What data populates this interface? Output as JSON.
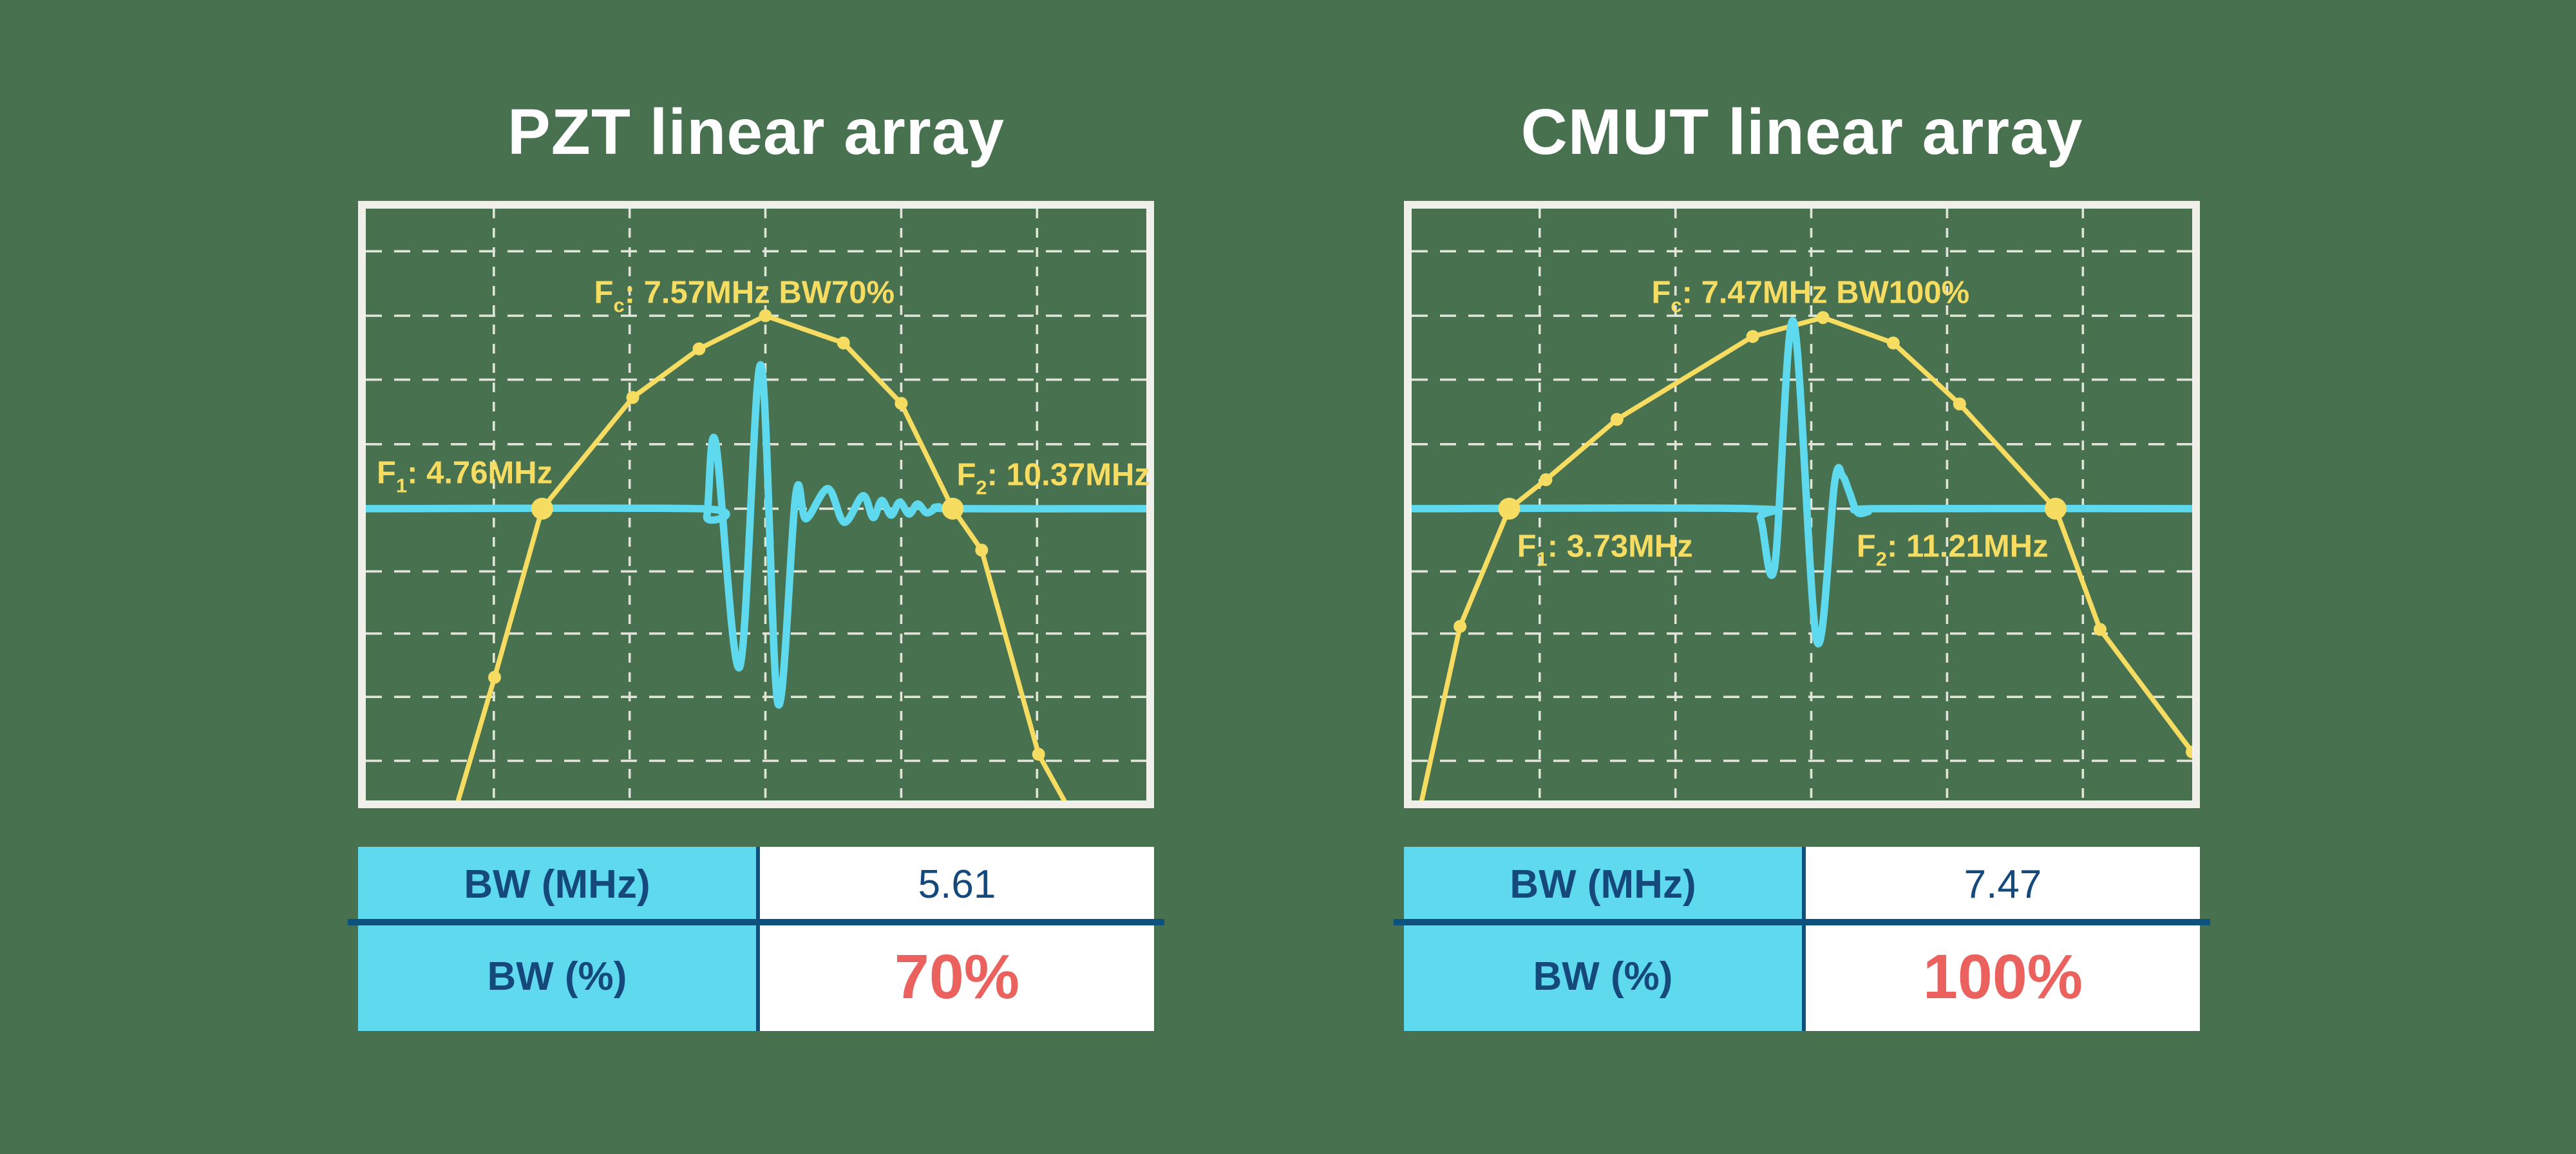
{
  "canvas": {
    "background_color": "#48714F"
  },
  "palette": {
    "spectrum_yellow": "#F7DC62",
    "pulse_cyan": "#5ED9EE",
    "frame_white": "#F0EFEA",
    "grid_white": "#EFEEE4",
    "table_header_cyan": "#5ED9EE",
    "table_value_bg": "#FFFFFF",
    "text_dark_blue": "#15497C",
    "row_separator_blue": "#0D527F",
    "value_red": "#EA615E",
    "title_white": "#FFFFFF"
  },
  "chart_data": [
    {
      "type": "line",
      "title": "PZT linear array",
      "center_frequency_mhz": 7.57,
      "f1_mhz": 4.76,
      "f2_mhz": 10.37,
      "bandwidth_mhz": 5.61,
      "bandwidth_pct": 70,
      "legend": "none",
      "axes": "unlabeled oscilloscope-style grid, -6dB crossing line shown in cyan",
      "annotations": {
        "fc": {
          "prefix": "F",
          "sub": "c",
          "rest": ": 7.57MHz BW70%",
          "x": 0.485,
          "y": 0.143,
          "anchor": "center"
        },
        "f1": {
          "prefix": "F",
          "sub": "1",
          "rest": ": 4.76MHz",
          "x": 0.014,
          "y": 0.447,
          "anchor": "left"
        },
        "f2": {
          "prefix": "F",
          "sub": "2",
          "rest": ": 10.37MHz",
          "x": 0.757,
          "y": 0.45,
          "anchor": "left"
        }
      },
      "baseline_y": 0.507,
      "grid": {
        "v": [
          0.164,
          0.338,
          0.512,
          0.686,
          0.86
        ],
        "h": [
          0.072,
          0.181,
          0.289,
          0.398,
          0.507,
          0.613,
          0.718,
          0.825,
          0.933
        ]
      },
      "spectrum": [
        [
          0.105,
          1.06
        ],
        [
          0.165,
          0.792
        ],
        [
          0.226,
          0.507
        ],
        [
          0.342,
          0.319
        ],
        [
          0.427,
          0.237
        ],
        [
          0.512,
          0.181
        ],
        [
          0.612,
          0.227
        ],
        [
          0.686,
          0.329
        ],
        [
          0.752,
          0.507
        ],
        [
          0.789,
          0.577
        ],
        [
          0.862,
          0.922
        ],
        [
          0.92,
          1.06
        ]
      ],
      "dots": [
        {
          "x": 0.165,
          "y": 0.792,
          "size": "small"
        },
        {
          "x": 0.226,
          "y": 0.507,
          "size": "big"
        },
        {
          "x": 0.342,
          "y": 0.319,
          "size": "small"
        },
        {
          "x": 0.427,
          "y": 0.237,
          "size": "small"
        },
        {
          "x": 0.512,
          "y": 0.181,
          "size": "small"
        },
        {
          "x": 0.612,
          "y": 0.227,
          "size": "small"
        },
        {
          "x": 0.686,
          "y": 0.329,
          "size": "small"
        },
        {
          "x": 0.752,
          "y": 0.507,
          "size": "big"
        },
        {
          "x": 0.789,
          "y": 0.577,
          "size": "small"
        },
        {
          "x": 0.862,
          "y": 0.922,
          "size": "small"
        }
      ],
      "pulse": [
        [
          0,
          0.507
        ],
        [
          0.428,
          0.507
        ],
        [
          0.437,
          0.52
        ],
        [
          0.448,
          0.394
        ],
        [
          0.479,
          0.775
        ],
        [
          0.506,
          0.264
        ],
        [
          0.528,
          0.836
        ],
        [
          0.551,
          0.482
        ],
        [
          0.564,
          0.524
        ],
        [
          0.592,
          0.473
        ],
        [
          0.613,
          0.53
        ],
        [
          0.637,
          0.485
        ],
        [
          0.65,
          0.522
        ],
        [
          0.661,
          0.493
        ],
        [
          0.673,
          0.518
        ],
        [
          0.684,
          0.496
        ],
        [
          0.696,
          0.516
        ],
        [
          0.707,
          0.499
        ],
        [
          0.719,
          0.514
        ],
        [
          0.734,
          0.504
        ],
        [
          0.752,
          0.507
        ],
        [
          1,
          0.507
        ]
      ],
      "table": {
        "rows": [
          {
            "label": "BW (MHz)",
            "value": "5.61"
          },
          {
            "label": "BW (%)",
            "value": "70%"
          }
        ]
      }
    },
    {
      "type": "line",
      "title": "CMUT linear array",
      "center_frequency_mhz": 7.47,
      "f1_mhz": 3.73,
      "f2_mhz": 11.21,
      "bandwidth_mhz": 7.47,
      "bandwidth_pct": 100,
      "legend": "none",
      "axes": "unlabeled oscilloscope-style grid, -6dB crossing line shown in cyan",
      "annotations": {
        "fc": {
          "prefix": "F",
          "sub": "c",
          "rest": ": 7.47MHz BW100%",
          "x": 0.511,
          "y": 0.143,
          "anchor": "center"
        },
        "f1": {
          "prefix": "F",
          "sub": "1",
          "rest": ": 3.73MHz",
          "x": 0.135,
          "y": 0.571,
          "anchor": "left"
        },
        "f2": {
          "prefix": "F",
          "sub": "2",
          "rest": ": 11.21MHz",
          "x": 0.57,
          "y": 0.571,
          "anchor": "left"
        }
      },
      "baseline_y": 0.507,
      "grid": {
        "v": [
          0.164,
          0.338,
          0.512,
          0.686,
          0.86
        ],
        "h": [
          0.072,
          0.181,
          0.289,
          0.398,
          0.507,
          0.613,
          0.718,
          0.825,
          0.933
        ]
      },
      "spectrum": [
        [
          0.003,
          1.06
        ],
        [
          0.062,
          0.706
        ],
        [
          0.125,
          0.507
        ],
        [
          0.172,
          0.458
        ],
        [
          0.263,
          0.356
        ],
        [
          0.437,
          0.216
        ],
        [
          0.527,
          0.184
        ],
        [
          0.617,
          0.227
        ],
        [
          0.702,
          0.33
        ],
        [
          0.825,
          0.507
        ],
        [
          0.882,
          0.711
        ],
        [
          1.0,
          0.918
        ],
        [
          1.02,
          0.945
        ]
      ],
      "dots": [
        {
          "x": 0.062,
          "y": 0.706,
          "size": "small"
        },
        {
          "x": 0.125,
          "y": 0.507,
          "size": "big"
        },
        {
          "x": 0.172,
          "y": 0.458,
          "size": "small"
        },
        {
          "x": 0.263,
          "y": 0.356,
          "size": "small"
        },
        {
          "x": 0.437,
          "y": 0.216,
          "size": "small"
        },
        {
          "x": 0.527,
          "y": 0.184,
          "size": "small"
        },
        {
          "x": 0.617,
          "y": 0.227,
          "size": "small"
        },
        {
          "x": 0.702,
          "y": 0.33,
          "size": "small"
        },
        {
          "x": 0.825,
          "y": 0.507,
          "size": "big"
        },
        {
          "x": 0.882,
          "y": 0.711,
          "size": "small"
        },
        {
          "x": 1.0,
          "y": 0.918,
          "size": "small"
        }
      ],
      "pulse": [
        [
          0,
          0.507
        ],
        [
          0.433,
          0.507
        ],
        [
          0.447,
          0.524
        ],
        [
          0.465,
          0.605
        ],
        [
          0.489,
          0.19
        ],
        [
          0.519,
          0.73
        ],
        [
          0.542,
          0.462
        ],
        [
          0.552,
          0.452
        ],
        [
          0.561,
          0.48
        ],
        [
          0.571,
          0.513
        ],
        [
          0.585,
          0.512
        ],
        [
          0.6,
          0.507
        ],
        [
          1,
          0.507
        ]
      ],
      "table": {
        "rows": [
          {
            "label": "BW (MHz)",
            "value": "7.47"
          },
          {
            "label": "BW (%)",
            "value": "100%"
          }
        ]
      }
    }
  ]
}
